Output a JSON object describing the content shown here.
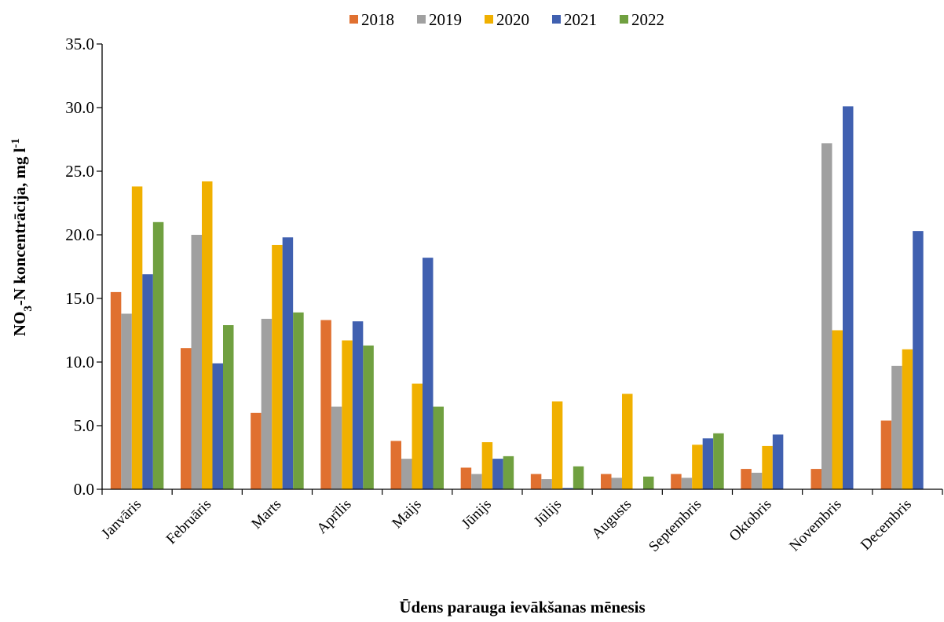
{
  "chart_data": {
    "type": "bar",
    "title": "",
    "xlabel": "Ūdens parauga ievākšanas mēnesis",
    "ylabel": {
      "pre": "NO",
      "sub": "3",
      "mid": "-N koncentrācija,  mg l",
      "sup": "-1"
    },
    "ylim": [
      0,
      35
    ],
    "yticks": [
      "0.0",
      "5.0",
      "10.0",
      "15.0",
      "20.0",
      "25.0",
      "30.0",
      "35.0"
    ],
    "grid": false,
    "legend_position": "top",
    "categories": [
      "Janvāris",
      "Februāris",
      "Marts",
      "Aprīlis",
      "Maijs",
      "Jūnijs",
      "Jūlijs",
      "Augusts",
      "Septembris",
      "Oktobris",
      "Novembris",
      "Decembris"
    ],
    "series": [
      {
        "name": "2018",
        "color": "#E07030",
        "values": [
          15.5,
          11.1,
          6.0,
          13.3,
          3.8,
          1.7,
          1.2,
          1.2,
          1.2,
          1.6,
          1.6,
          5.4
        ]
      },
      {
        "name": "2019",
        "color": "#A0A0A0",
        "values": [
          13.8,
          20.0,
          13.4,
          6.5,
          2.4,
          1.2,
          0.8,
          0.9,
          0.9,
          1.3,
          27.2,
          9.7
        ]
      },
      {
        "name": "2020",
        "color": "#F0B000",
        "values": [
          23.8,
          24.2,
          19.2,
          11.7,
          8.3,
          3.7,
          6.9,
          7.5,
          3.5,
          3.4,
          12.5,
          11.0
        ]
      },
      {
        "name": "2021",
        "color": "#4060B0",
        "values": [
          16.9,
          9.9,
          19.8,
          13.2,
          18.2,
          2.4,
          0.1,
          null,
          4.0,
          4.3,
          30.1,
          20.3
        ]
      },
      {
        "name": "2022",
        "color": "#70A040",
        "values": [
          21.0,
          12.9,
          13.9,
          11.3,
          6.5,
          2.6,
          1.8,
          1.0,
          4.4,
          null,
          null,
          null
        ]
      }
    ]
  }
}
